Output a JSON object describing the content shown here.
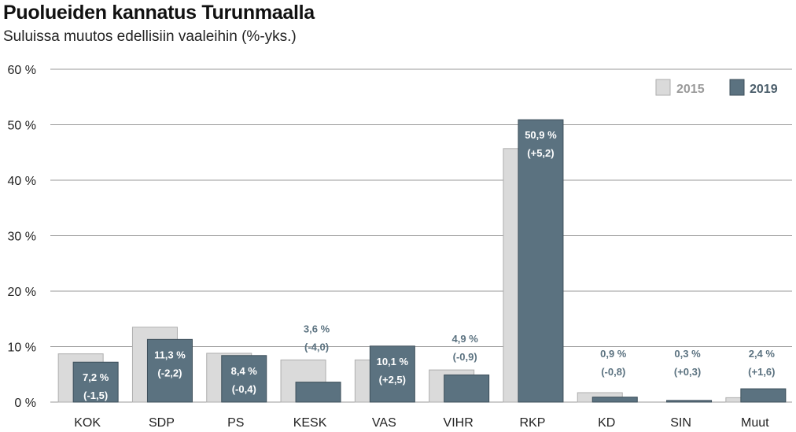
{
  "chart_data": {
    "type": "bar",
    "title": "Puolueiden kannatus Turunmaalla",
    "subtitle": "Suluissa muutos edellisiin vaaleihin (%-yks.)",
    "categories": [
      "KOK",
      "SDP",
      "PS",
      "KESK",
      "VAS",
      "VIHR",
      "RKP",
      "KD",
      "SIN",
      "Muut"
    ],
    "series": [
      {
        "name": "2015",
        "values": [
          8.7,
          13.5,
          8.8,
          7.6,
          7.6,
          5.8,
          45.7,
          1.7,
          0.0,
          0.8
        ],
        "color": "#dadada"
      },
      {
        "name": "2019",
        "values": [
          7.2,
          11.3,
          8.4,
          3.6,
          10.1,
          4.9,
          50.9,
          0.9,
          0.3,
          2.4
        ],
        "color": "#5b7280"
      }
    ],
    "data_labels": [
      {
        "value": "7,2 %",
        "change": "(-1,5)"
      },
      {
        "value": "11,3 %",
        "change": "(-2,2)"
      },
      {
        "value": "8,4 %",
        "change": "(-0,4)"
      },
      {
        "value": "3,6 %",
        "change": "(-4,0)"
      },
      {
        "value": "10,1 %",
        "change": "(+2,5)"
      },
      {
        "value": "4,9 %",
        "change": "(-0,9)"
      },
      {
        "value": "50,9 %",
        "change": "(+5,2)"
      },
      {
        "value": "0,9 %",
        "change": "(-0,8)"
      },
      {
        "value": "0,3 %",
        "change": "(+0,3)"
      },
      {
        "value": "2,4 %",
        "change": "(+1,6)"
      }
    ],
    "ylim": [
      0,
      60
    ],
    "yticks": [
      0,
      10,
      20,
      30,
      40,
      50,
      60
    ],
    "ytick_labels": [
      "0 %",
      "10 %",
      "20 %",
      "30 %",
      "40 %",
      "50 %",
      "60 %"
    ],
    "grid": true,
    "legend_position": "top-right",
    "xlabel": "",
    "ylabel": ""
  }
}
